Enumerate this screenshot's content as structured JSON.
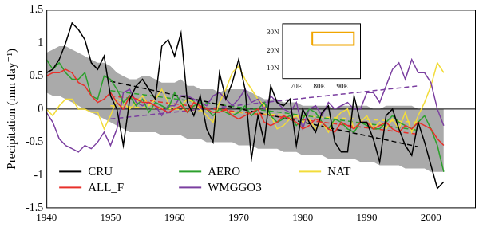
{
  "chart_data": [
    {
      "type": "line",
      "y_label": "Precipitation (mm day⁻¹)",
      "x": [
        1940,
        1941,
        1942,
        1943,
        1944,
        1945,
        1946,
        1947,
        1948,
        1949,
        1950,
        1951,
        1952,
        1953,
        1954,
        1955,
        1956,
        1957,
        1958,
        1959,
        1960,
        1961,
        1962,
        1963,
        1964,
        1965,
        1966,
        1967,
        1968,
        1969,
        1970,
        1971,
        1972,
        1973,
        1974,
        1975,
        1976,
        1977,
        1978,
        1979,
        1980,
        1981,
        1982,
        1983,
        1984,
        1985,
        1986,
        1987,
        1988,
        1989,
        1990,
        1991,
        1992,
        1993,
        1994,
        1995,
        1996,
        1997,
        1998,
        1999,
        2000,
        2001,
        2002
      ],
      "xlim": [
        1940,
        2007
      ],
      "xticks": [
        1940,
        1950,
        1960,
        1970,
        1980,
        1990,
        2000
      ],
      "ylim": [
        -1.5,
        1.5
      ],
      "yticks": [
        -1.5,
        -1,
        -0.5,
        0,
        0.5,
        1,
        1.5
      ],
      "grid": false,
      "legend": "lower left",
      "hline": 0,
      "band": {
        "color": "#aaaaaa",
        "lower": [
          0.25,
          0.2,
          0.2,
          0.15,
          0.1,
          0.05,
          0.0,
          -0.05,
          -0.1,
          -0.15,
          -0.2,
          -0.25,
          -0.3,
          -0.35,
          -0.35,
          -0.35,
          -0.35,
          -0.35,
          -0.4,
          -0.4,
          -0.4,
          -0.4,
          -0.45,
          -0.45,
          -0.45,
          -0.5,
          -0.5,
          -0.5,
          -0.5,
          -0.5,
          -0.55,
          -0.55,
          -0.55,
          -0.6,
          -0.6,
          -0.6,
          -0.6,
          -0.65,
          -0.65,
          -0.65,
          -0.7,
          -0.7,
          -0.7,
          -0.7,
          -0.75,
          -0.75,
          -0.75,
          -0.75,
          -0.75,
          -0.8,
          -0.8,
          -0.8,
          -0.85,
          -0.85,
          -0.85,
          -0.85,
          -0.9,
          -0.9,
          -0.9,
          -0.9,
          -0.95,
          -0.95,
          -0.95
        ],
        "upper": [
          0.85,
          0.9,
          0.95,
          0.95,
          0.9,
          0.85,
          0.8,
          0.75,
          0.7,
          0.7,
          0.65,
          0.55,
          0.5,
          0.45,
          0.45,
          0.5,
          0.5,
          0.45,
          0.4,
          0.4,
          0.4,
          0.45,
          0.35,
          0.35,
          0.3,
          0.3,
          0.3,
          0.25,
          0.3,
          0.3,
          0.3,
          0.3,
          0.25,
          0.2,
          0.15,
          0.15,
          0.15,
          0.1,
          0.1,
          0.1,
          0.05,
          0.05,
          0.05,
          0.05,
          0.05,
          0.0,
          0.05,
          0.05,
          0.05,
          0.05,
          0.05,
          0.0,
          0.0,
          0.05,
          0.05,
          0.05,
          0.05,
          0.05,
          0.0,
          0.0,
          0.0,
          0.0,
          0.0
        ]
      },
      "series": [
        {
          "name": "CRU",
          "color": "#000000",
          "values": [
            0.55,
            0.6,
            0.75,
            1.0,
            1.3,
            1.2,
            1.05,
            0.7,
            0.6,
            0.8,
            0.2,
            0.0,
            -0.55,
            0.15,
            0.35,
            0.45,
            0.3,
            0.15,
            0.95,
            1.05,
            0.8,
            1.15,
            0.1,
            -0.1,
            0.2,
            -0.3,
            -0.5,
            0.55,
            0.15,
            0.4,
            0.75,
            0.3,
            -0.75,
            -0.1,
            -0.5,
            0.35,
            0.1,
            0.05,
            0.15,
            -0.55,
            0.0,
            -0.2,
            -0.35,
            -0.05,
            0.05,
            -0.5,
            -0.65,
            -0.65,
            0.2,
            -0.2,
            -0.2,
            -0.45,
            -0.8,
            -0.1,
            0.0,
            -0.3,
            -0.55,
            -0.7,
            -0.2,
            -0.5,
            -0.85,
            -1.2,
            -1.1
          ],
          "trend": {
            "x": [
              1950,
              1998
            ],
            "values": [
              0.42,
              -0.57
            ],
            "line_style": "dashed"
          }
        },
        {
          "name": "ALL_F",
          "color": "#e8302a",
          "values": [
            0.5,
            0.55,
            0.55,
            0.6,
            0.55,
            0.4,
            0.35,
            0.2,
            0.1,
            0.15,
            0.25,
            0.1,
            0.0,
            0.2,
            0.15,
            0.1,
            0.1,
            0.05,
            0.0,
            -0.05,
            0.0,
            0.05,
            -0.05,
            0.1,
            0.05,
            0.0,
            -0.05,
            -0.05,
            0.0,
            -0.1,
            -0.15,
            -0.1,
            -0.05,
            0.0,
            -0.2,
            -0.25,
            -0.2,
            -0.1,
            -0.15,
            -0.2,
            -0.3,
            -0.25,
            -0.15,
            -0.2,
            -0.3,
            -0.35,
            -0.2,
            -0.25,
            -0.3,
            -0.2,
            -0.2,
            -0.3,
            -0.25,
            -0.2,
            -0.3,
            -0.35,
            -0.25,
            -0.3,
            -0.2,
            -0.25,
            -0.3,
            -0.45,
            -0.55
          ],
          "trend": {
            "x": [
              1950,
              1998
            ],
            "values": [
              0.2,
              -0.38
            ],
            "line_style": "dashed"
          }
        },
        {
          "name": "AERO",
          "color": "#2ca02c",
          "values": [
            0.75,
            0.6,
            0.7,
            0.55,
            0.45,
            0.45,
            0.55,
            0.2,
            0.15,
            0.5,
            0.45,
            0.3,
            0.1,
            0.2,
            0.05,
            0.15,
            -0.05,
            0.1,
            0.05,
            0.0,
            0.25,
            0.1,
            -0.05,
            0.05,
            0.1,
            0.0,
            -0.1,
            0.0,
            -0.05,
            -0.1,
            -0.05,
            0.05,
            -0.1,
            0.0,
            0.1,
            -0.1,
            -0.2,
            -0.15,
            -0.1,
            -0.25,
            -0.15,
            0.0,
            -0.05,
            -0.2,
            -0.3,
            -0.15,
            -0.2,
            -0.3,
            -0.35,
            -0.2,
            -0.25,
            -0.3,
            -0.3,
            -0.2,
            -0.1,
            -0.2,
            -0.25,
            -0.3,
            -0.2,
            -0.1,
            -0.3,
            -0.55,
            -0.95
          ],
          "trend": {
            "x": [
              1950,
              1998
            ],
            "values": [
              0.28,
              -0.32
            ],
            "line_style": "dashed"
          }
        },
        {
          "name": "WMGGO3",
          "color": "#7b3fa0",
          "values": [
            -0.05,
            -0.2,
            -0.45,
            -0.55,
            -0.6,
            -0.65,
            -0.55,
            -0.6,
            -0.5,
            -0.35,
            -0.55,
            -0.3,
            0.25,
            0.3,
            0.1,
            0.05,
            0.1,
            0.05,
            -0.1,
            0.05,
            0.05,
            0.2,
            0.2,
            0.15,
            0.1,
            0.05,
            0.2,
            0.25,
            0.15,
            0.05,
            0.15,
            0.3,
            0.1,
            0.15,
            0.0,
            0.2,
            0.1,
            0.0,
            -0.05,
            0.1,
            -0.3,
            0.0,
            0.05,
            -0.1,
            0.1,
            0.0,
            0.05,
            0.1,
            0.0,
            0.0,
            0.25,
            0.25,
            0.1,
            0.35,
            0.6,
            0.7,
            0.45,
            0.75,
            0.55,
            0.55,
            0.4,
            0.0,
            -0.25
          ],
          "trend": {
            "x": [
              1950,
              1998
            ],
            "values": [
              -0.15,
              0.35
            ],
            "line_style": "dashed"
          }
        },
        {
          "name": "NAT",
          "color": "#f2dc3a",
          "values": [
            0.0,
            -0.1,
            0.05,
            0.15,
            0.15,
            0.0,
            0.0,
            -0.05,
            -0.05,
            -0.3,
            -0.1,
            0.15,
            0.1,
            0.0,
            0.1,
            0.2,
            0.05,
            0.15,
            0.3,
            0.1,
            0.0,
            0.05,
            0.15,
            0.1,
            0.0,
            -0.1,
            -0.2,
            0.1,
            0.3,
            0.55,
            0.65,
            0.45,
            0.3,
            0.15,
            0.05,
            -0.1,
            -0.3,
            -0.25,
            -0.15,
            -0.1,
            -0.2,
            -0.15,
            -0.3,
            -0.2,
            -0.35,
            -0.15,
            -0.05,
            0.0,
            -0.3,
            -0.2,
            -0.1,
            -0.3,
            -0.2,
            -0.3,
            -0.15,
            -0.3,
            -0.05,
            -0.35,
            -0.1,
            0.1,
            0.35,
            0.7,
            0.55
          ],
          "trend": {
            "x": [
              1950,
              1998
            ],
            "values": [
              0.05,
              -0.2
            ],
            "line_style": "dashed"
          }
        }
      ]
    },
    {
      "type": "map",
      "xlim": [
        64,
        98
      ],
      "ylim": [
        4,
        35
      ],
      "xticks": [
        {
          "value": 70,
          "label": "70E"
        },
        {
          "value": 80,
          "label": "80E"
        },
        {
          "value": 90,
          "label": "90E"
        }
      ],
      "yticks": [
        {
          "value": 10,
          "label": "10N"
        },
        {
          "value": 20,
          "label": "20N"
        },
        {
          "value": 30,
          "label": "30N"
        }
      ],
      "grid": false,
      "region": {
        "lon": [
          77,
          95
        ],
        "lat": [
          23,
          30
        ],
        "color": "#f0a500"
      }
    }
  ]
}
